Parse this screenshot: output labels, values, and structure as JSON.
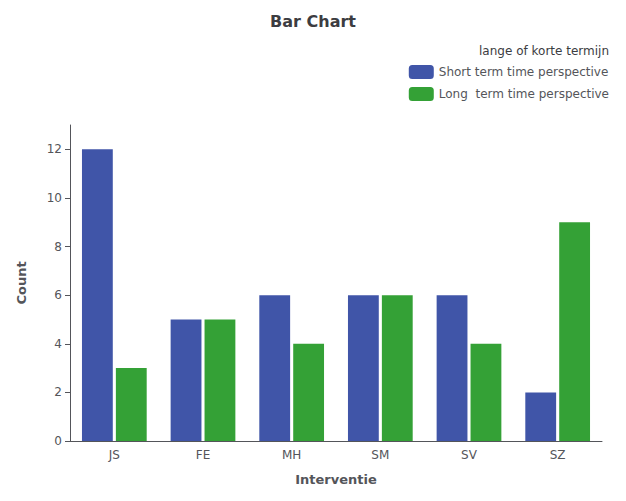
{
  "chart_data": {
    "type": "bar",
    "title": "Bar Chart",
    "xlabel": "Interventie",
    "ylabel": "Count",
    "categories": [
      "JS",
      "FE",
      "MH",
      "SM",
      "SV",
      "SZ"
    ],
    "series": [
      {
        "name": "Short term time perspective",
        "color": "#4055a8",
        "values": [
          12,
          5,
          6,
          6,
          6,
          2
        ]
      },
      {
        "name": "Long  term time perspective",
        "color": "#34a136",
        "values": [
          3,
          5,
          4,
          6,
          4,
          9
        ]
      }
    ],
    "ylim": [
      0,
      13
    ],
    "yticks": [
      0,
      2,
      4,
      6,
      8,
      10,
      12
    ],
    "grid": false,
    "legend": "upper right",
    "legend_title": "lange of korte termijn"
  }
}
